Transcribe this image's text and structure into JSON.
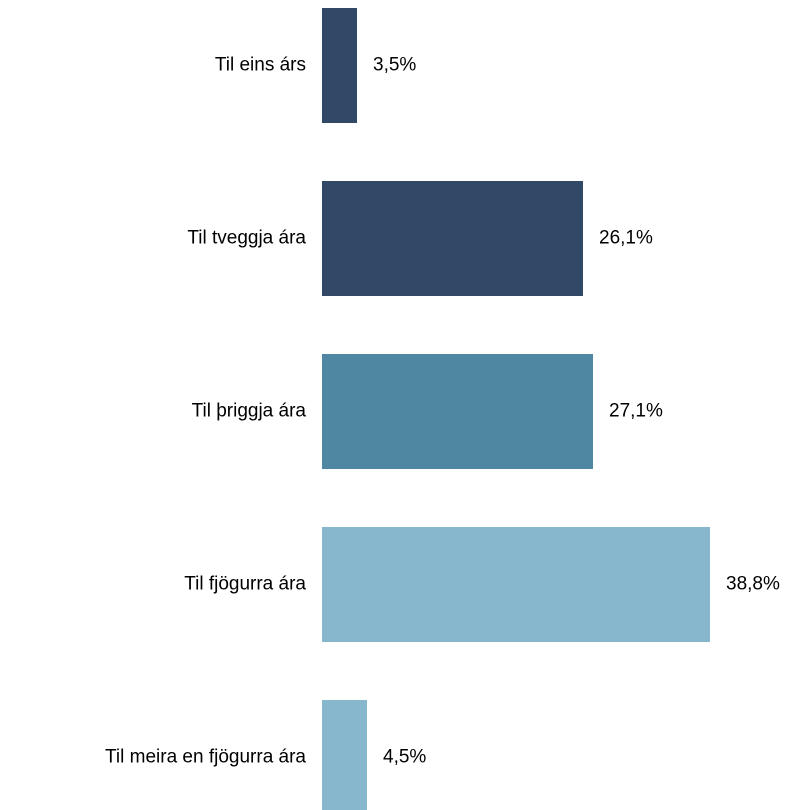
{
  "chart_data": {
    "type": "bar",
    "orientation": "horizontal",
    "categories": [
      "Til eins árs",
      "Til tveggja ára",
      "Til þriggja ára",
      "Til fjögurra ára",
      "Til meira en fjögurra ára"
    ],
    "values": [
      3.5,
      26.1,
      27.1,
      38.8,
      4.5
    ],
    "value_labels": [
      "3,5%",
      "26,1%",
      "27,1%",
      "38,8%",
      "4,5%"
    ],
    "unit": "%",
    "bar_colors": [
      "#324867",
      "#324867",
      "#4f87a2",
      "#87b7cd",
      "#87b7cd"
    ],
    "title": "",
    "xlabel": "",
    "ylabel": "",
    "grid": false,
    "legend": "none"
  }
}
